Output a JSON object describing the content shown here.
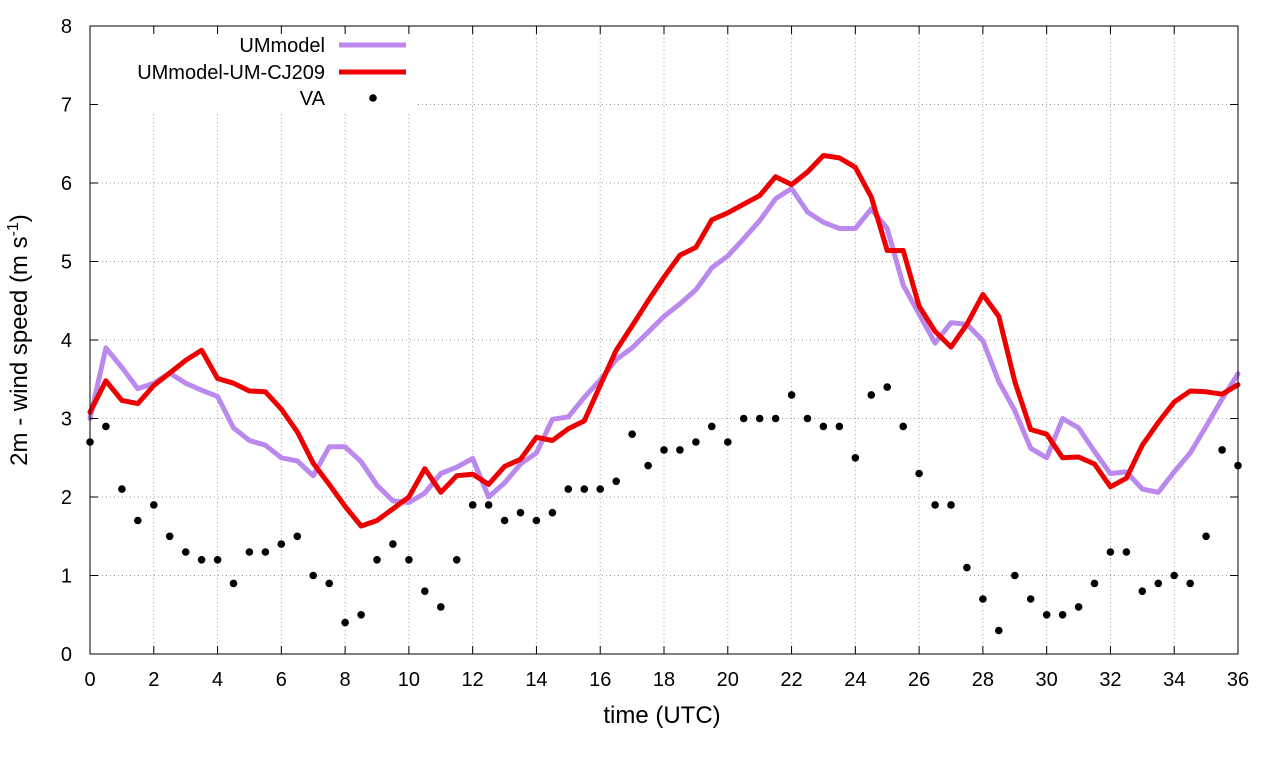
{
  "chart_data": {
    "type": "line",
    "title": "",
    "xlabel": "time (UTC)",
    "ylabel": "2m - wind speed  (m s",
    "ylabel_sup": "-1",
    "ylabel_close": ")",
    "xlim": [
      0,
      36
    ],
    "ylim": [
      0,
      8
    ],
    "xticks": [
      "0",
      "2",
      "4",
      "6",
      "8",
      "10",
      "12",
      "14",
      "16",
      "18",
      "20",
      "22",
      "24",
      "26",
      "28",
      "30",
      "32",
      "34",
      "36"
    ],
    "yticks": [
      "0",
      "1",
      "2",
      "3",
      "4",
      "5",
      "6",
      "7",
      "8"
    ],
    "grid": true,
    "legend_position": "top-left",
    "series": [
      {
        "name": "UMmodel",
        "kind": "line",
        "color": "#bb88ee",
        "x": [
          0,
          0.5,
          1,
          1.5,
          2,
          2.5,
          3,
          3.5,
          4,
          4.5,
          5,
          5.5,
          6,
          6.5,
          7,
          7.5,
          8,
          8.5,
          9,
          9.5,
          10,
          10.5,
          11,
          11.5,
          12,
          12.5,
          13,
          13.5,
          14,
          14.5,
          15,
          15.5,
          16,
          16.5,
          17,
          17.5,
          18,
          18.5,
          19,
          19.5,
          20,
          20.5,
          21,
          21.5,
          22,
          22.5,
          23,
          23.5,
          24,
          24.5,
          25,
          25.5,
          26,
          26.5,
          27,
          27.5,
          28,
          28.5,
          29,
          29.5,
          30,
          30.5,
          31,
          31.5,
          32,
          32.5,
          33,
          33.5,
          34,
          34.5,
          35,
          35.5,
          36
        ],
        "values": [
          3.0,
          3.9,
          3.65,
          3.38,
          3.45,
          3.58,
          3.45,
          3.36,
          3.28,
          2.88,
          2.72,
          2.66,
          2.5,
          2.46,
          2.27,
          2.64,
          2.64,
          2.45,
          2.15,
          1.95,
          1.93,
          2.05,
          2.3,
          2.38,
          2.49,
          2.0,
          2.18,
          2.42,
          2.56,
          2.99,
          3.02,
          3.27,
          3.49,
          3.75,
          3.9,
          4.1,
          4.3,
          4.46,
          4.64,
          4.92,
          5.07,
          5.29,
          5.52,
          5.8,
          5.93,
          5.63,
          5.5,
          5.42,
          5.42,
          5.67,
          5.42,
          4.7,
          4.33,
          3.96,
          4.22,
          4.2,
          3.99,
          3.47,
          3.1,
          2.62,
          2.5,
          3.0,
          2.88,
          2.58,
          2.3,
          2.32,
          2.1,
          2.06,
          2.32,
          2.56,
          2.9,
          3.25,
          3.57
        ]
      },
      {
        "name": "UMmodel-UM-CJ209",
        "kind": "line",
        "color": "#ee0000",
        "x": [
          0,
          0.5,
          1,
          1.5,
          2,
          2.5,
          3,
          3.5,
          4,
          4.5,
          5,
          5.5,
          6,
          6.5,
          7,
          7.5,
          8,
          8.5,
          9,
          9.5,
          10,
          10.5,
          11,
          11.5,
          12,
          12.5,
          13,
          13.5,
          14,
          14.5,
          15,
          15.5,
          16,
          16.5,
          17,
          17.5,
          18,
          18.5,
          19,
          19.5,
          20,
          20.5,
          21,
          21.5,
          22,
          22.5,
          23,
          23.5,
          24,
          24.5,
          25,
          25.5,
          26,
          26.5,
          27,
          27.5,
          28,
          28.5,
          29,
          29.5,
          30,
          30.5,
          31,
          31.5,
          32,
          32.5,
          33,
          33.5,
          34,
          34.5,
          35,
          35.5,
          36
        ],
        "values": [
          3.08,
          3.48,
          3.23,
          3.19,
          3.42,
          3.58,
          3.74,
          3.87,
          3.51,
          3.45,
          3.35,
          3.34,
          3.12,
          2.83,
          2.43,
          2.16,
          1.88,
          1.63,
          1.7,
          1.85,
          2.0,
          2.36,
          2.06,
          2.27,
          2.29,
          2.16,
          2.39,
          2.48,
          2.76,
          2.72,
          2.87,
          2.97,
          3.42,
          3.87,
          4.18,
          4.5,
          4.8,
          5.08,
          5.18,
          5.53,
          5.62,
          5.73,
          5.84,
          6.08,
          5.98,
          6.14,
          6.35,
          6.32,
          6.2,
          5.82,
          5.14,
          5.14,
          4.43,
          4.11,
          3.91,
          4.2,
          4.58,
          4.3,
          3.47,
          2.86,
          2.8,
          2.5,
          2.51,
          2.42,
          2.13,
          2.24,
          2.66,
          2.95,
          3.21,
          3.35,
          3.34,
          3.31,
          3.43
        ]
      },
      {
        "name": "VA",
        "kind": "scatter",
        "color": "#000000",
        "x": [
          0,
          0.5,
          1,
          1.5,
          2,
          2.5,
          3,
          3.5,
          4,
          4.5,
          5,
          5.5,
          6,
          6.5,
          7,
          7.5,
          8,
          8.5,
          9,
          9.5,
          10,
          10.5,
          11,
          11.5,
          12,
          12.5,
          13,
          13.5,
          14,
          14.5,
          15,
          15.5,
          16,
          16.5,
          17,
          17.5,
          18,
          18.5,
          19,
          19.5,
          20,
          20.5,
          21,
          21.5,
          22,
          22.5,
          23,
          23.5,
          24,
          24.5,
          25,
          25.5,
          26,
          26.5,
          27,
          27.5,
          28,
          28.5,
          29,
          29.5,
          30,
          30.5,
          31,
          31.5,
          32,
          32.5,
          33,
          33.5,
          34,
          34.5,
          35,
          35.5,
          36
        ],
        "values": [
          2.7,
          2.9,
          2.1,
          1.7,
          1.9,
          1.5,
          1.3,
          1.2,
          1.2,
          0.9,
          1.3,
          1.3,
          1.4,
          1.5,
          1.0,
          0.9,
          0.4,
          0.5,
          1.2,
          1.4,
          1.2,
          0.8,
          0.6,
          1.2,
          1.9,
          1.9,
          1.7,
          1.8,
          1.7,
          1.8,
          2.1,
          2.1,
          2.1,
          2.2,
          2.8,
          2.4,
          2.6,
          2.6,
          2.7,
          2.9,
          2.7,
          3.0,
          3.0,
          3.0,
          3.3,
          3.0,
          2.9,
          2.9,
          2.5,
          3.3,
          3.4,
          2.9,
          2.3,
          1.9,
          1.9,
          1.1,
          0.7,
          0.3,
          1.0,
          0.7,
          0.5,
          0.5,
          0.6,
          0.9,
          1.3,
          1.3,
          0.8,
          0.9,
          1.0,
          0.9,
          1.5,
          2.6,
          2.4
        ]
      }
    ]
  }
}
